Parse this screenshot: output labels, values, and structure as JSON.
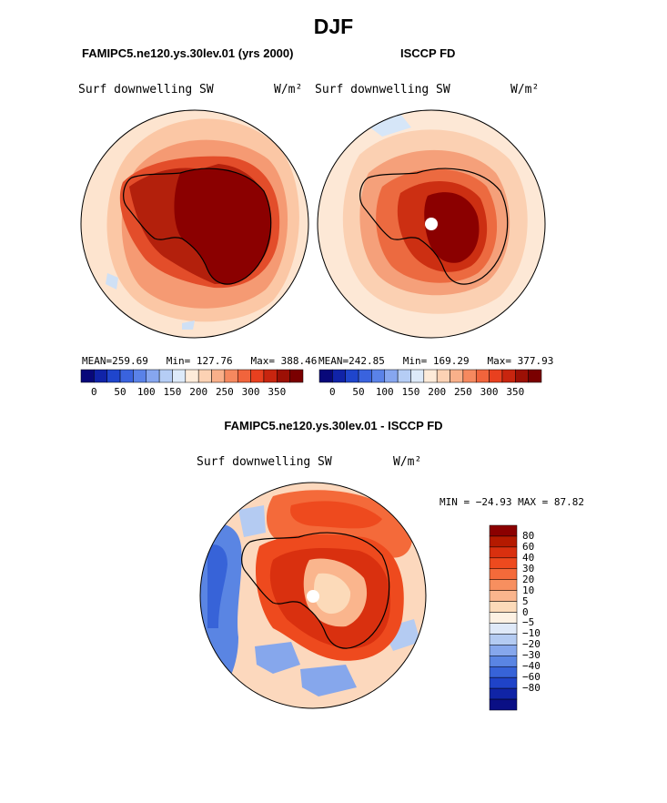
{
  "title": "DJF",
  "panels": [
    {
      "title": "FAMIPC5.ne120.ys.30lev.01 (yrs 2000)",
      "variable": "Surf downwelling SW",
      "units": "W/m²",
      "stats": {
        "mean_label": "MEAN=",
        "mean": "259.69",
        "min_label": "Min=",
        "min": "127.76",
        "max_label": "Max=",
        "max": "388.46"
      }
    },
    {
      "title": "ISCCP FD",
      "variable": "Surf downwelling SW",
      "units": "W/m²",
      "stats": {
        "mean_label": "MEAN=",
        "mean": "242.85",
        "min_label": "Min=",
        "min": "169.29",
        "max_label": "Max=",
        "max": "377.93"
      }
    }
  ],
  "colorbar_top": {
    "colors": [
      "#08087a",
      "#1023a8",
      "#1f45cc",
      "#3a63de",
      "#5a82e8",
      "#86a6ef",
      "#b5cdf5",
      "#ddeaf9",
      "#fdebd9",
      "#fcd2b4",
      "#f9b08a",
      "#f6895f",
      "#f1643c",
      "#e8401f",
      "#c8250f",
      "#9c1005",
      "#7a0000"
    ],
    "labels": [
      "0",
      "50",
      "100",
      "150",
      "200",
      "250",
      "300",
      "350"
    ]
  },
  "diff": {
    "title": "FAMIPC5.ne120.ys.30lev.01 - ISCCP FD",
    "variable": "Surf downwelling SW",
    "units": "W/m²",
    "minmax": "MIN = −24.93 MAX =  87.82",
    "colorbar": {
      "colors": [
        "#8b0000",
        "#b51a00",
        "#d9300f",
        "#ee4a1e",
        "#f46a3a",
        "#f78f5f",
        "#fab58d",
        "#fcdab9",
        "#fdf1e3",
        "#dfe9f8",
        "#b4cbf2",
        "#86a7ec",
        "#5a85e3",
        "#3763d8",
        "#1f43c8",
        "#1024a6",
        "#0a0f85"
      ],
      "labels": [
        "80",
        "60",
        "40",
        "30",
        "20",
        "10",
        "5",
        "0",
        "−5",
        "−10",
        "−20",
        "−30",
        "−40",
        "−60",
        "−80"
      ]
    }
  },
  "colors": {
    "land_max": "#8b0000",
    "land_mid": "#c8250f",
    "pole_dot": "#ffffff"
  }
}
